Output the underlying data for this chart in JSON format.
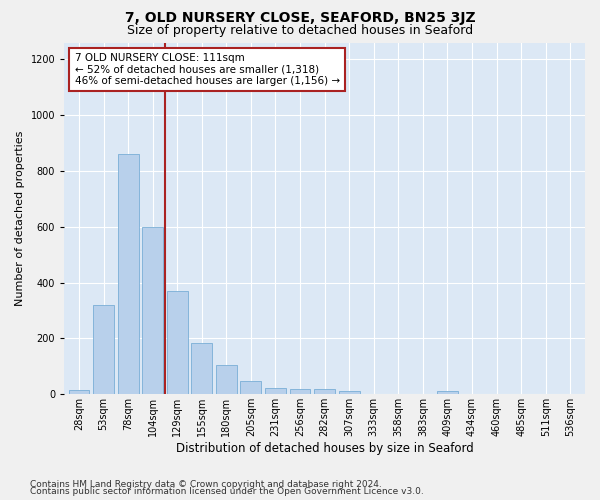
{
  "title1": "7, OLD NURSERY CLOSE, SEAFORD, BN25 3JZ",
  "title2": "Size of property relative to detached houses in Seaford",
  "xlabel": "Distribution of detached houses by size in Seaford",
  "ylabel": "Number of detached properties",
  "categories": [
    "28sqm",
    "53sqm",
    "78sqm",
    "104sqm",
    "129sqm",
    "155sqm",
    "180sqm",
    "205sqm",
    "231sqm",
    "256sqm",
    "282sqm",
    "307sqm",
    "333sqm",
    "358sqm",
    "383sqm",
    "409sqm",
    "434sqm",
    "460sqm",
    "485sqm",
    "511sqm",
    "536sqm"
  ],
  "values": [
    15,
    320,
    860,
    600,
    370,
    185,
    105,
    47,
    22,
    18,
    18,
    13,
    0,
    0,
    0,
    13,
    0,
    0,
    0,
    0,
    0
  ],
  "bar_color": "#b8d0eb",
  "bar_edge_color": "#7aaed6",
  "vline_x": 3.5,
  "vline_color": "#aa2222",
  "annotation_text": "7 OLD NURSERY CLOSE: 111sqm\n← 52% of detached houses are smaller (1,318)\n46% of semi-detached houses are larger (1,156) →",
  "annotation_box_color": "#ffffff",
  "annotation_box_edge": "#aa2222",
  "ylim": [
    0,
    1260
  ],
  "yticks": [
    0,
    200,
    400,
    600,
    800,
    1000,
    1200
  ],
  "footer1": "Contains HM Land Registry data © Crown copyright and database right 2024.",
  "footer2": "Contains public sector information licensed under the Open Government Licence v3.0.",
  "fig_bg_color": "#f0f0f0",
  "plot_bg": "#dce8f5",
  "title1_fontsize": 10,
  "title2_fontsize": 9,
  "xlabel_fontsize": 8.5,
  "ylabel_fontsize": 8,
  "footer_fontsize": 6.5,
  "annot_fontsize": 7.5,
  "tick_fontsize": 7
}
